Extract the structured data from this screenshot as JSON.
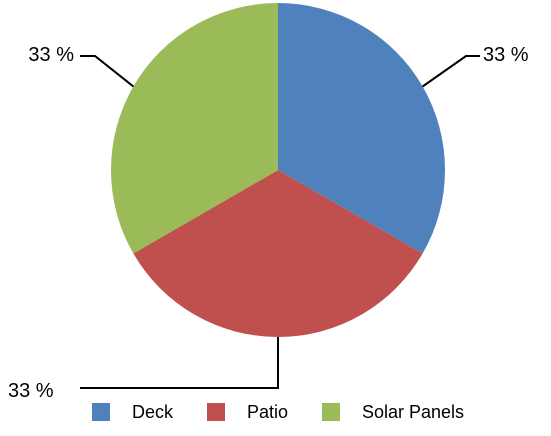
{
  "chart_data": {
    "type": "pie",
    "categories": [
      "Deck",
      "Patio",
      "Solar Panels"
    ],
    "values": [
      33.33,
      33.33,
      33.33
    ],
    "data_labels": [
      "33 %",
      "33 %",
      "33 %"
    ],
    "colors": [
      "#4f81bd",
      "#c0504d",
      "#9bbb59"
    ],
    "legend": {
      "position": "bottom",
      "entries": [
        "Deck",
        "Patio",
        "Solar Panels"
      ]
    },
    "title": "",
    "start_angle_deg": 0,
    "direction": "clockwise"
  }
}
